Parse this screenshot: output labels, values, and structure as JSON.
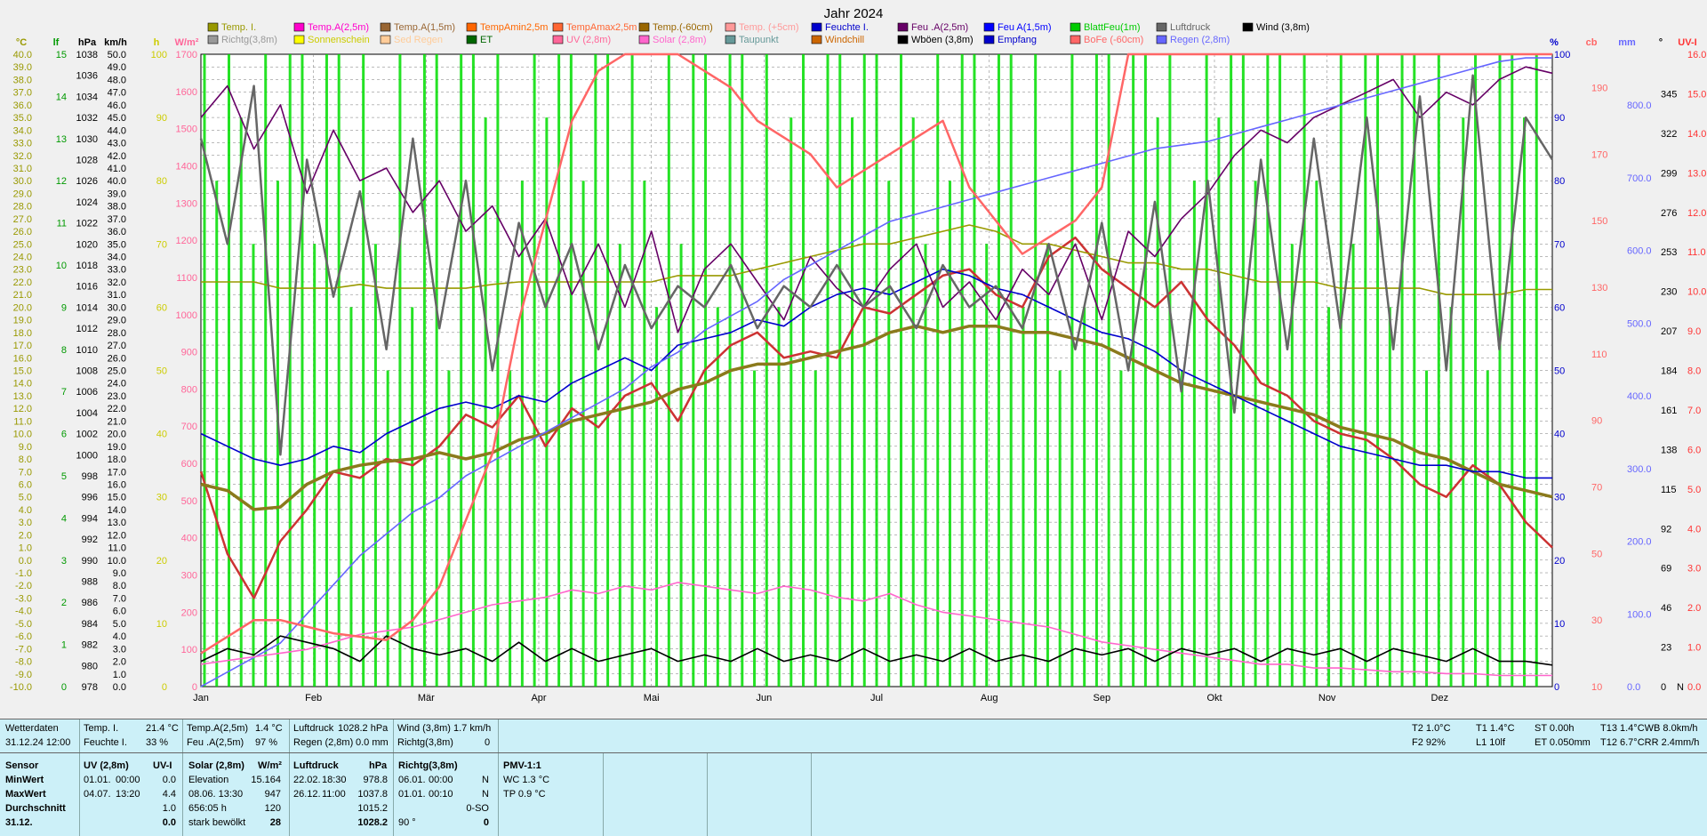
{
  "chart_data": {
    "type": "line",
    "title": "Jahr 2024",
    "months": [
      "Jan",
      "Feb",
      "Mär",
      "Apr",
      "Mai",
      "Jun",
      "Jul",
      "Aug",
      "Sep",
      "Okt",
      "Nov",
      "Dez"
    ],
    "grid": true,
    "legend_placement": "top",
    "axes": [
      {
        "unit": "°C",
        "color": "#999900",
        "min": -10,
        "max": 40,
        "ticks": [
          "40.0",
          "39.0",
          "38.0",
          "37.0",
          "36.0",
          "35.0",
          "34.0",
          "33.0",
          "32.0",
          "31.0",
          "30.0",
          "29.0",
          "28.0",
          "27.0",
          "26.0",
          "25.0",
          "24.0",
          "23.0",
          "22.0",
          "21.0",
          "20.0",
          "19.0",
          "18.0",
          "17.0",
          "16.0",
          "15.0",
          "14.0",
          "13.0",
          "12.0",
          "11.0",
          "10.0",
          "9.0",
          "8.0",
          "7.0",
          "6.0",
          "5.0",
          "4.0",
          "3.0",
          "2.0",
          "1.0",
          "0.0",
          "-1.0",
          "-2.0",
          "-3.0",
          "-4.0",
          "-5.0",
          "-6.0",
          "-7.0",
          "-8.0",
          "-9.0",
          "-10.0"
        ]
      },
      {
        "unit": "lf",
        "color": "#009900",
        "min": 0,
        "max": 15,
        "ticks": [
          "15",
          "14",
          "13",
          "12",
          "11",
          "10",
          "9",
          "8",
          "7",
          "6",
          "5",
          "4",
          "3",
          "2",
          "1",
          "0"
        ]
      },
      {
        "unit": "hPa",
        "color": "#000000",
        "min": 978,
        "max": 1038,
        "ticks": [
          "1038",
          "1036",
          "1034",
          "1032",
          "1030",
          "1028",
          "1026",
          "1024",
          "1022",
          "1020",
          "1018",
          "1016",
          "1014",
          "1012",
          "1010",
          "1008",
          "1006",
          "1004",
          "1002",
          "1000",
          "998",
          "996",
          "994",
          "992",
          "990",
          "988",
          "986",
          "984",
          "982",
          "980",
          "978"
        ]
      },
      {
        "unit": "km/h",
        "color": "#000000",
        "min": 0,
        "max": 50,
        "ticks": [
          "50.0",
          "49.0",
          "48.0",
          "47.0",
          "46.0",
          "45.0",
          "44.0",
          "43.0",
          "42.0",
          "41.0",
          "40.0",
          "39.0",
          "38.0",
          "37.0",
          "36.0",
          "35.0",
          "34.0",
          "33.0",
          "32.0",
          "31.0",
          "30.0",
          "29.0",
          "28.0",
          "27.0",
          "26.0",
          "25.0",
          "24.0",
          "23.0",
          "22.0",
          "21.0",
          "20.0",
          "19.0",
          "18.0",
          "17.0",
          "16.0",
          "15.0",
          "14.0",
          "13.0",
          "12.0",
          "11.0",
          "10.0",
          "9.0",
          "8.0",
          "7.0",
          "6.0",
          "5.0",
          "4.0",
          "3.0",
          "2.0",
          "1.0",
          "0.0"
        ]
      },
      {
        "unit": "h",
        "color": "#cccc00",
        "min": 0,
        "max": 100,
        "ticks": [
          "100",
          "90",
          "80",
          "70",
          "60",
          "50",
          "40",
          "30",
          "20",
          "10",
          "0"
        ]
      },
      {
        "unit": "W/m²",
        "color": "#ff6699",
        "min": 0,
        "max": 1700,
        "ticks": [
          "1700",
          "1600",
          "1500",
          "1400",
          "1300",
          "1200",
          "1100",
          "1000",
          "900",
          "800",
          "700",
          "600",
          "500",
          "400",
          "300",
          "200",
          "100",
          "0"
        ]
      },
      {
        "unit": "%",
        "color": "#0000cc",
        "min": 0,
        "max": 100,
        "ticks": [
          "100",
          "90",
          "80",
          "70",
          "60",
          "50",
          "40",
          "30",
          "20",
          "10",
          "0"
        ]
      },
      {
        "unit": "cb",
        "color": "#ff6666",
        "min": 10,
        "max": 200,
        "ticks": [
          "190",
          "170",
          "150",
          "130",
          "110",
          "90",
          "70",
          "50",
          "30",
          "10"
        ]
      },
      {
        "unit": "mm",
        "color": "#6666ff",
        "min": 0,
        "max": 870,
        "ticks": [
          "800.0",
          "700.0",
          "600.0",
          "500.0",
          "400.0",
          "300.0",
          "200.0",
          "100.0",
          "0.0"
        ]
      },
      {
        "unit": "°",
        "color": "#000000",
        "min": 0,
        "max": 368,
        "ticks": [
          "345",
          "322",
          "299",
          "276",
          "253",
          "230",
          "207",
          "184",
          "161",
          "138",
          "115",
          "92",
          "69",
          "46",
          "23",
          "0"
        ]
      },
      {
        "unit": "UV-I",
        "color": "#ff3333",
        "min": 0,
        "max": 16,
        "ticks": [
          "16.0",
          "15.0",
          "14.0",
          "13.0",
          "12.0",
          "11.0",
          "10.0",
          "9.0",
          "8.0",
          "7.0",
          "6.0",
          "5.0",
          "4.0",
          "3.0",
          "2.0",
          "1.0",
          "0.0"
        ]
      }
    ],
    "right_extra": "N",
    "legend": [
      {
        "name": "Temp. I.",
        "color": "#999900"
      },
      {
        "name": "Richtg(3,8m)",
        "color": "#999999"
      },
      {
        "name": "Temp.A(2,5m)",
        "color": "#ff00cc"
      },
      {
        "name": "Sonnenschein",
        "color": "#ffff00"
      },
      {
        "name": "Temp.A(1,5m)",
        "color": "#996633"
      },
      {
        "name": "Sed Regen",
        "color": "#ffcc99"
      },
      {
        "name": "TempAmin2,5m",
        "color": "#ff6600"
      },
      {
        "name": "ET",
        "color": "#006600"
      },
      {
        "name": "TempAmax2,5m",
        "color": "#ff6633"
      },
      {
        "name": "UV (2,8m)",
        "color": "#ff6699"
      },
      {
        "name": "Temp.(-60cm)",
        "color": "#996600"
      },
      {
        "name": "Solar (2,8m)",
        "color": "#ff66cc"
      },
      {
        "name": "Temp. (+5cm)",
        "color": "#ff9999"
      },
      {
        "name": "Taupunkt",
        "color": "#669999"
      },
      {
        "name": "Feuchte I.",
        "color": "#0000cc"
      },
      {
        "name": "Windchill",
        "color": "#cc6600"
      },
      {
        "name": "Feu .A(2,5m)",
        "color": "#660066"
      },
      {
        "name": "Wböen (3,8m)",
        "color": "#000000"
      },
      {
        "name": "Feu  A(1,5m)",
        "color": "#0000ff"
      },
      {
        "name": "Empfang",
        "color": "#0000cc"
      },
      {
        "name": "BlattFeu(1m)",
        "color": "#00cc00"
      },
      {
        "name": "BoFe (-60cm)",
        "color": "#ff6666"
      },
      {
        "name": "Luftdruck",
        "color": "#666666"
      },
      {
        "name": "Regen (2,8m)",
        "color": "#6666ff"
      },
      {
        "name": "Wind (3,8m)",
        "color": "#000000"
      }
    ],
    "series": [
      {
        "name": "Temp.A(2,5m)",
        "color": "#cc3333",
        "unit": "°C",
        "values": [
          7.0,
          0.5,
          -3.0,
          1.5,
          4.0,
          7.0,
          6.5,
          8.0,
          7.5,
          9.0,
          11.5,
          10.5,
          13.0,
          9.0,
          12.0,
          10.5,
          13.0,
          14.0,
          11.0,
          15.0,
          17.0,
          18.0,
          16.0,
          16.5,
          16.0,
          20.0,
          19.5,
          21.0,
          22.5,
          23.0,
          21.0,
          20.0,
          24.0,
          25.5,
          23.0,
          21.5,
          20.0,
          22.0,
          19.0,
          17.0,
          14.0,
          13.0,
          11.0,
          10.0,
          9.5,
          8.0,
          6.0,
          5.0,
          7.5,
          6.0,
          3.0,
          1.0
        ]
      },
      {
        "name": "Temp.(-60cm)",
        "color": "#8b7a1c",
        "unit": "°C",
        "values": [
          6.0,
          5.5,
          4.0,
          4.2,
          6.0,
          7.0,
          7.5,
          7.8,
          8.0,
          8.5,
          8.0,
          8.5,
          9.5,
          10.0,
          11.0,
          11.5,
          12.0,
          12.5,
          13.5,
          14.0,
          15.0,
          15.5,
          15.5,
          16.0,
          16.5,
          17.0,
          18.0,
          18.5,
          18.0,
          18.5,
          18.5,
          18.0,
          18.0,
          17.5,
          17.0,
          16.0,
          15.0,
          14.0,
          13.5,
          13.0,
          12.5,
          12.0,
          11.5,
          10.5,
          10.0,
          9.5,
          8.5,
          8.0,
          7.0,
          6.0,
          5.5,
          5.0
        ]
      },
      {
        "name": "Temp. I.",
        "color": "#999900",
        "unit": "°C",
        "values": [
          22.0,
          22.0,
          22.0,
          21.5,
          21.5,
          21.5,
          21.8,
          21.5,
          21.5,
          21.5,
          21.5,
          21.8,
          22.0,
          22.0,
          22.0,
          22.0,
          22.0,
          22.0,
          22.5,
          22.5,
          22.5,
          23.0,
          23.5,
          24.0,
          24.5,
          25.0,
          25.0,
          25.5,
          26.0,
          26.5,
          26.0,
          25.0,
          25.0,
          24.5,
          24.0,
          23.5,
          23.5,
          23.0,
          23.0,
          22.5,
          22.0,
          22.0,
          22.0,
          21.5,
          21.5,
          21.5,
          21.5,
          21.0,
          21.0,
          21.0,
          21.4,
          21.4
        ]
      },
      {
        "name": "Feu .A(2,5m)",
        "color": "#660066",
        "unit": "%",
        "values": [
          90,
          95,
          85,
          92,
          78,
          88,
          80,
          82,
          75,
          80,
          72,
          76,
          68,
          74,
          62,
          70,
          60,
          72,
          56,
          66,
          70,
          64,
          58,
          68,
          63,
          60,
          66,
          70,
          60,
          64,
          58,
          66,
          62,
          70,
          58,
          72,
          68,
          74,
          78,
          84,
          88,
          86,
          90,
          92,
          94,
          96,
          90,
          94,
          92,
          96,
          98,
          97
        ]
      },
      {
        "name": "Feuchte I.",
        "color": "#0000cc",
        "unit": "%",
        "values": [
          40,
          38,
          36,
          35,
          36,
          38,
          37,
          40,
          42,
          44,
          45,
          44,
          46,
          45,
          48,
          50,
          52,
          50,
          54,
          55,
          56,
          58,
          57,
          60,
          62,
          63,
          62,
          64,
          66,
          65,
          63,
          62,
          60,
          58,
          56,
          55,
          53,
          50,
          48,
          46,
          44,
          42,
          40,
          38,
          37,
          36,
          35,
          35,
          34,
          34,
          33,
          33
        ]
      },
      {
        "name": "Regen (2,8m)",
        "color": "#6666ff",
        "unit": "mm",
        "values": [
          0,
          20,
          40,
          60,
          100,
          140,
          180,
          210,
          240,
          260,
          290,
          310,
          330,
          350,
          370,
          390,
          410,
          440,
          460,
          490,
          510,
          530,
          560,
          580,
          600,
          620,
          640,
          650,
          660,
          670,
          680,
          690,
          700,
          710,
          720,
          730,
          740,
          745,
          750,
          760,
          770,
          780,
          790,
          800,
          810,
          820,
          830,
          840,
          850,
          860,
          865,
          865
        ]
      },
      {
        "name": "Solar (2,8m)",
        "color": "#ff66cc",
        "unit": "W/m²",
        "values": [
          60,
          70,
          80,
          90,
          100,
          120,
          140,
          150,
          160,
          180,
          200,
          220,
          230,
          240,
          260,
          250,
          270,
          260,
          280,
          270,
          260,
          250,
          270,
          260,
          240,
          230,
          250,
          220,
          200,
          190,
          180,
          170,
          160,
          140,
          120,
          110,
          100,
          90,
          80,
          70,
          60,
          60,
          50,
          50,
          45,
          40,
          40,
          35,
          35,
          30,
          30,
          30
        ]
      },
      {
        "name": "Wind (3,8m)",
        "color": "#000000",
        "unit": "km/h",
        "values": [
          2,
          3,
          2.5,
          4,
          3.5,
          3,
          2,
          4,
          3,
          2.5,
          3,
          2,
          3.5,
          2,
          3,
          2,
          2.5,
          3,
          2,
          2.5,
          2,
          3,
          2,
          2.5,
          2,
          3,
          2,
          2.5,
          2,
          3,
          2,
          2.5,
          2,
          3,
          2.5,
          3,
          2,
          3,
          2.5,
          3,
          2,
          3,
          2.5,
          3,
          2,
          3,
          2.5,
          2,
          3,
          2,
          2,
          1.7
        ]
      },
      {
        "name": "Luftdruck",
        "color": "#666666",
        "unit": "hPa",
        "values": [
          1030,
          1020,
          1035,
          1000,
          1028,
          1015,
          1025,
          1010,
          1030,
          1012,
          1026,
          1008,
          1022,
          1014,
          1020,
          1010,
          1018,
          1012,
          1016,
          1014,
          1018,
          1012,
          1016,
          1014,
          1018,
          1014,
          1016,
          1012,
          1018,
          1014,
          1016,
          1012,
          1020,
          1010,
          1022,
          1008,
          1024,
          1006,
          1026,
          1004,
          1028,
          1010,
          1030,
          1012,
          1032,
          1010,
          1034,
          1008,
          1036,
          1010,
          1032,
          1028
        ]
      },
      {
        "name": "BoFe (-60cm)",
        "color": "#ff6666",
        "unit": "cb",
        "values": [
          20,
          25,
          30,
          30,
          28,
          26,
          25,
          24,
          30,
          40,
          60,
          80,
          120,
          150,
          180,
          195,
          200,
          200,
          200,
          195,
          190,
          180,
          175,
          170,
          160,
          165,
          170,
          175,
          180,
          160,
          150,
          140,
          145,
          150,
          160,
          200,
          200,
          200,
          200,
          200,
          200,
          200,
          200,
          200,
          200,
          200,
          200,
          200,
          200,
          200,
          200,
          200
        ]
      }
    ],
    "leaf_wetness_series": {
      "name": "BlattFeu(1m)",
      "color": "#00dd00",
      "unit": "lf"
    }
  },
  "status": {
    "row1": {
      "title": "Wetterdaten",
      "date": "31.12.24 12:00",
      "c1": [
        "Temp. I.",
        "21.4 °C",
        "Feuchte I.",
        "33 %"
      ],
      "c2": [
        "Temp.A(2,5m)",
        "1.4 °C",
        "Feu .A(2,5m)",
        "97 %"
      ],
      "c3": [
        "Luftdruck",
        "1028.2 hPa",
        "Regen (2,8m)",
        "0.0 mm"
      ],
      "c4": [
        "Wind (3,8m)",
        "1.7 km/h",
        "Richtg(3,8m)",
        "0"
      ],
      "r1": [
        "T2 1.0°C",
        "F2 92%"
      ],
      "r2": [
        "T1 1.4°C",
        "L1 10lf"
      ],
      "r3": [
        "ST 0.00h",
        "ET 0.050mm"
      ],
      "r4": [
        "T13 1.4°CWB 8.0km/h",
        "T12 6.7°CRR 2.4mm/h"
      ]
    },
    "row2": {
      "labels": [
        "Sensor",
        "MinWert",
        "MaxWert",
        "Durchschnitt",
        "31.12."
      ],
      "uv": {
        "head1": "UV (2,8m)",
        "head2": "UV-I",
        "rows": [
          [
            "01.01.",
            "00:00",
            "0.0"
          ],
          [
            "04.07.",
            "13:20",
            "4.4"
          ],
          [
            "",
            "",
            "1.0"
          ],
          [
            "",
            "",
            "0.0"
          ]
        ]
      },
      "solar": {
        "head1": "Solar (2,8m)",
        "head2": "W/m²",
        "rows": [
          [
            "Elevation",
            "15.164"
          ],
          [
            "08.06.  13:30",
            "947"
          ],
          [
            "656:05 h",
            "120"
          ],
          [
            "stark bewölkt",
            "28"
          ]
        ]
      },
      "press": {
        "head1": "Luftdruck",
        "head2": "hPa",
        "rows": [
          [
            "22.02.",
            "18:30",
            "978.8"
          ],
          [
            "26.12.",
            "11:00",
            "1037.8"
          ],
          [
            "",
            "",
            "1015.2"
          ],
          [
            "",
            "",
            "1028.2"
          ]
        ]
      },
      "dir": {
        "head1": "Richtg(3,8m)",
        "rows": [
          [
            "06.01.",
            "00:00",
            "N"
          ],
          [
            "01.01.",
            "00:10",
            "N"
          ],
          [
            "",
            "",
            "0-SO"
          ],
          [
            "90 °",
            "",
            "0"
          ]
        ]
      },
      "pmv": {
        "head1": "PMV-1:1",
        "rows": [
          "WC 1.3 °C",
          "TP 0.9 °C"
        ]
      }
    }
  }
}
